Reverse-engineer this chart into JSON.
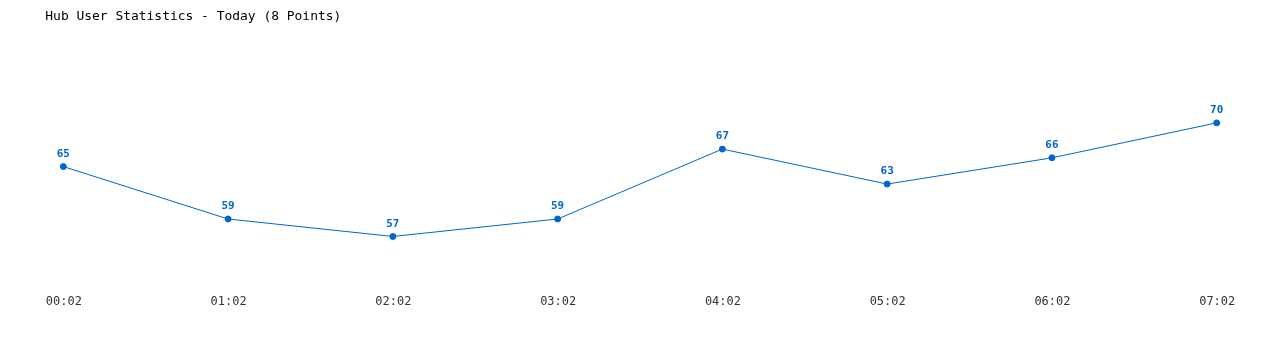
{
  "chart_data": {
    "type": "line",
    "title": "Hub User Statistics - Today (8 Points)",
    "categories": [
      "00:02",
      "01:02",
      "02:02",
      "03:02",
      "04:02",
      "05:02",
      "06:02",
      "07:02"
    ],
    "series": [
      {
        "color": "#0066cc",
        "values": [
          65,
          59,
          57,
          59,
          67,
          63,
          66,
          70
        ]
      }
    ],
    "data_labels": true,
    "marker": "circle",
    "line_style": "solid"
  }
}
